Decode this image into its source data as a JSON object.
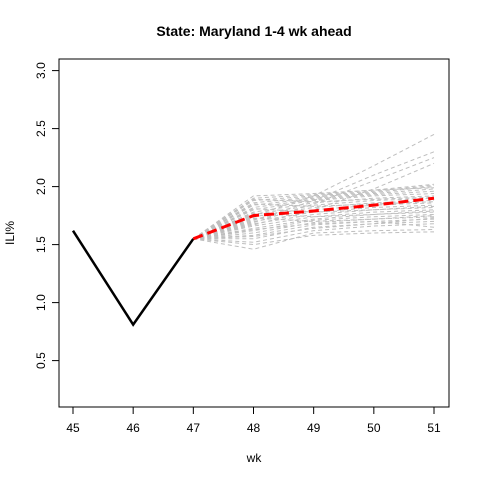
{
  "chart_data": {
    "type": "line",
    "title": "State: Maryland 1-4 wk ahead",
    "xlabel": "wk",
    "ylabel": "ILI%",
    "xlim": [
      45,
      51
    ],
    "ylim": [
      0.1,
      3.1
    ],
    "x_ticks": [
      "45",
      "46",
      "47",
      "48",
      "49",
      "50",
      "51"
    ],
    "y_ticks": [
      "0.5",
      "1.0",
      "1.5",
      "2.0",
      "2.5",
      "3.0"
    ],
    "observed": {
      "x": [
        45,
        46,
        47
      ],
      "y": [
        1.62,
        0.81,
        1.55
      ],
      "color": "#000000"
    },
    "forecast_mean": {
      "x": [
        47,
        48,
        49,
        50,
        51
      ],
      "y": [
        1.55,
        1.75,
        1.79,
        1.84,
        1.9
      ],
      "color": "#ff0000"
    },
    "trajectories": {
      "x": [
        47,
        48,
        49,
        50,
        51
      ],
      "color": "#bebebe",
      "series": [
        [
          1.55,
          1.46,
          1.6,
          1.62,
          1.63
        ],
        [
          1.55,
          1.5,
          1.58,
          1.6,
          1.61
        ],
        [
          1.55,
          1.52,
          1.62,
          1.66,
          1.68
        ],
        [
          1.55,
          1.55,
          1.65,
          1.68,
          1.7
        ],
        [
          1.55,
          1.58,
          1.67,
          1.7,
          1.72
        ],
        [
          1.55,
          1.6,
          1.69,
          1.72,
          1.74
        ],
        [
          1.55,
          1.62,
          1.71,
          1.74,
          1.76
        ],
        [
          1.55,
          1.64,
          1.72,
          1.76,
          1.78
        ],
        [
          1.55,
          1.66,
          1.74,
          1.78,
          1.8
        ],
        [
          1.55,
          1.68,
          1.76,
          1.8,
          1.82
        ],
        [
          1.55,
          1.7,
          1.78,
          1.82,
          1.84
        ],
        [
          1.55,
          1.72,
          1.8,
          1.84,
          1.86
        ],
        [
          1.55,
          1.74,
          1.82,
          1.86,
          1.88
        ],
        [
          1.55,
          1.76,
          1.84,
          1.88,
          1.9
        ],
        [
          1.55,
          1.78,
          1.86,
          1.9,
          1.92
        ],
        [
          1.55,
          1.8,
          1.88,
          1.92,
          1.94
        ],
        [
          1.55,
          1.82,
          1.89,
          1.93,
          1.96
        ],
        [
          1.55,
          1.84,
          1.9,
          1.94,
          1.98
        ],
        [
          1.55,
          1.86,
          1.91,
          1.95,
          2.0
        ],
        [
          1.55,
          1.88,
          1.92,
          1.96,
          2.01
        ],
        [
          1.55,
          1.9,
          1.93,
          1.97,
          2.02
        ],
        [
          1.55,
          1.92,
          1.94,
          1.97,
          1.99
        ],
        [
          1.55,
          1.73,
          1.7,
          1.72,
          1.75
        ],
        [
          1.55,
          1.77,
          1.74,
          1.76,
          1.79
        ],
        [
          1.55,
          1.81,
          1.78,
          1.8,
          1.83
        ],
        [
          1.55,
          1.85,
          1.83,
          1.85,
          1.87
        ],
        [
          1.55,
          1.89,
          1.87,
          1.89,
          1.91
        ],
        [
          1.55,
          1.69,
          1.85,
          2.05,
          2.25
        ],
        [
          1.55,
          1.71,
          1.88,
          2.1,
          2.3
        ],
        [
          1.55,
          1.75,
          1.92,
          2.18,
          2.45
        ],
        [
          1.55,
          1.67,
          1.8,
          1.98,
          2.2
        ],
        [
          1.55,
          1.63,
          1.68,
          1.7,
          1.65
        ],
        [
          1.55,
          1.57,
          1.64,
          1.68,
          1.73
        ]
      ]
    }
  }
}
